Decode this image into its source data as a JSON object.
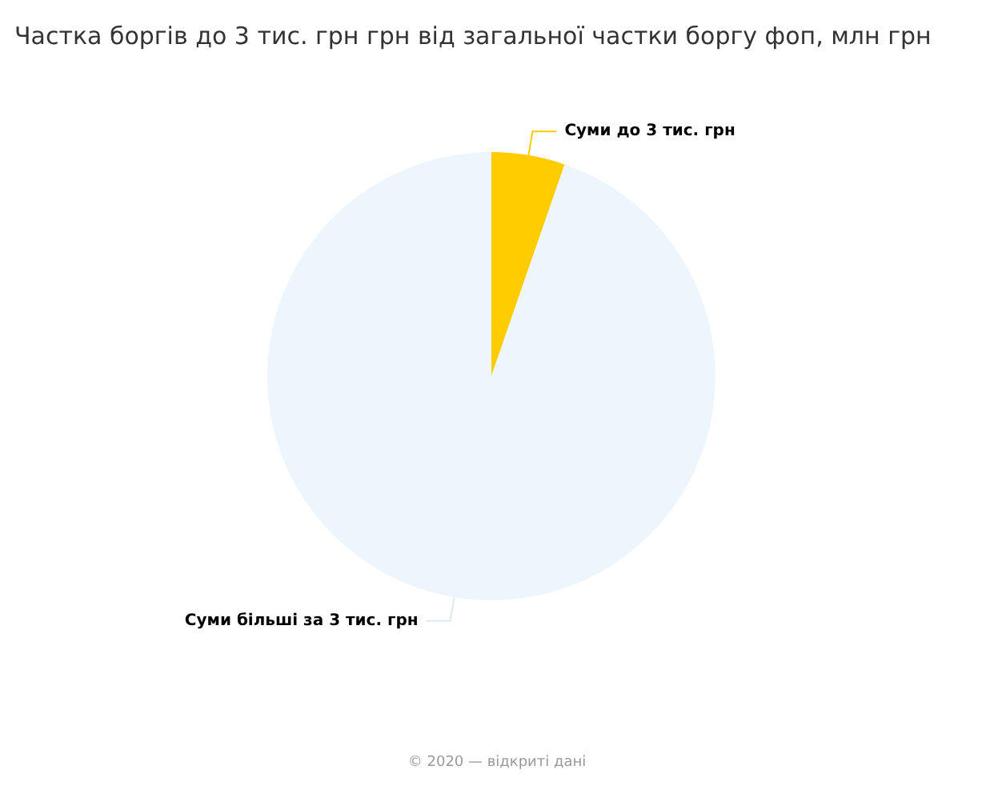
{
  "chart_data": {
    "type": "pie",
    "title": "Частка боргів до 3 тис. грн грн від загальної частки боргу фоп, млн грн",
    "categories": [
      "Суми до 3 тис. грн",
      "Суми більші за 3 тис. грн"
    ],
    "values": [
      5.3,
      94.7
    ],
    "colors": [
      "#ffcc00",
      "#eef6fd"
    ],
    "annotations": [
      "© 2020 — відкриті дані"
    ],
    "legend": false
  }
}
